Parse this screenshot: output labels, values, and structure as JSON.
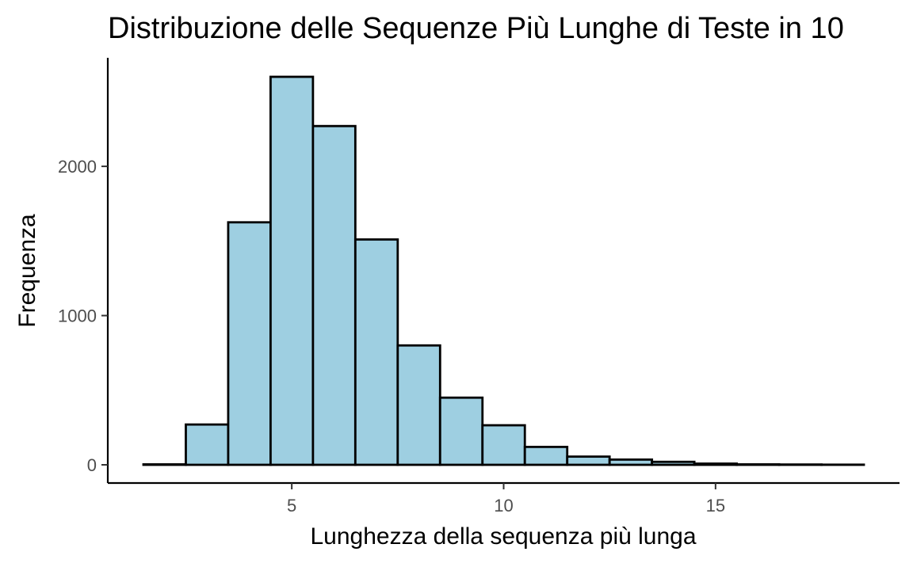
{
  "chart_data": {
    "type": "bar",
    "title": "Distribuzione delle Sequenze Più Lunghe di Teste in 10",
    "xlabel": "Lunghezza della sequenza più lunga",
    "ylabel": "Frequenza",
    "bin_width": 1,
    "x": [
      2,
      3,
      4,
      5,
      6,
      7,
      8,
      9,
      10,
      11,
      12,
      13,
      14,
      15,
      16,
      17,
      18
    ],
    "values": [
      3,
      270,
      1625,
      2600,
      2270,
      1510,
      800,
      450,
      265,
      120,
      55,
      35,
      20,
      8,
      3,
      2,
      1
    ],
    "xlim": [
      1.5,
      18.5
    ],
    "ylim": [
      0,
      2600
    ],
    "x_ticks": [
      5,
      10,
      15
    ],
    "x_tick_labels": [
      "5",
      "10",
      "15"
    ],
    "y_ticks": [
      0,
      1000,
      2000
    ],
    "y_tick_labels": [
      "0",
      "1000",
      "2000"
    ],
    "bar_fill": "#9ecfe1",
    "bar_stroke": "#000000",
    "grid": false,
    "legend": "none"
  }
}
